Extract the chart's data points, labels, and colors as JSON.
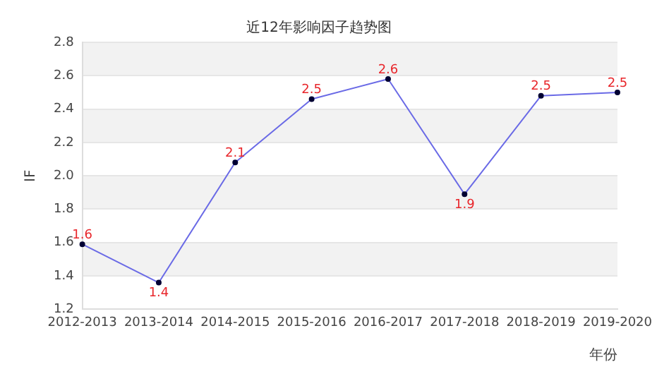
{
  "chart_data": {
    "type": "line",
    "title": "近12年影响因子趋势图",
    "xlabel": "年份",
    "ylabel": "IF",
    "categories": [
      "2012-2013",
      "2013-2014",
      "2014-2015",
      "2015-2016",
      "2016-2017",
      "2017-2018",
      "2018-2019",
      "2019-2020"
    ],
    "series": [
      {
        "color": "#6a6ae6",
        "values": [
          1.59,
          1.36,
          2.08,
          2.46,
          2.58,
          1.89,
          2.48,
          2.5
        ],
        "value_labels": [
          "1.6",
          "1.4",
          "2.1",
          "2.5",
          "2.6",
          "1.9",
          "2.5",
          "2.5"
        ]
      }
    ],
    "ylim": [
      1.2,
      2.8
    ],
    "yticks": [
      1.2,
      1.4,
      1.6,
      1.8,
      {
        "value": 2,
        "label": "2.0"
      },
      2.2,
      2.4,
      2.6,
      2.8
    ],
    "grid": "y",
    "legend": false,
    "marker": "circle",
    "line_style": "solid"
  }
}
